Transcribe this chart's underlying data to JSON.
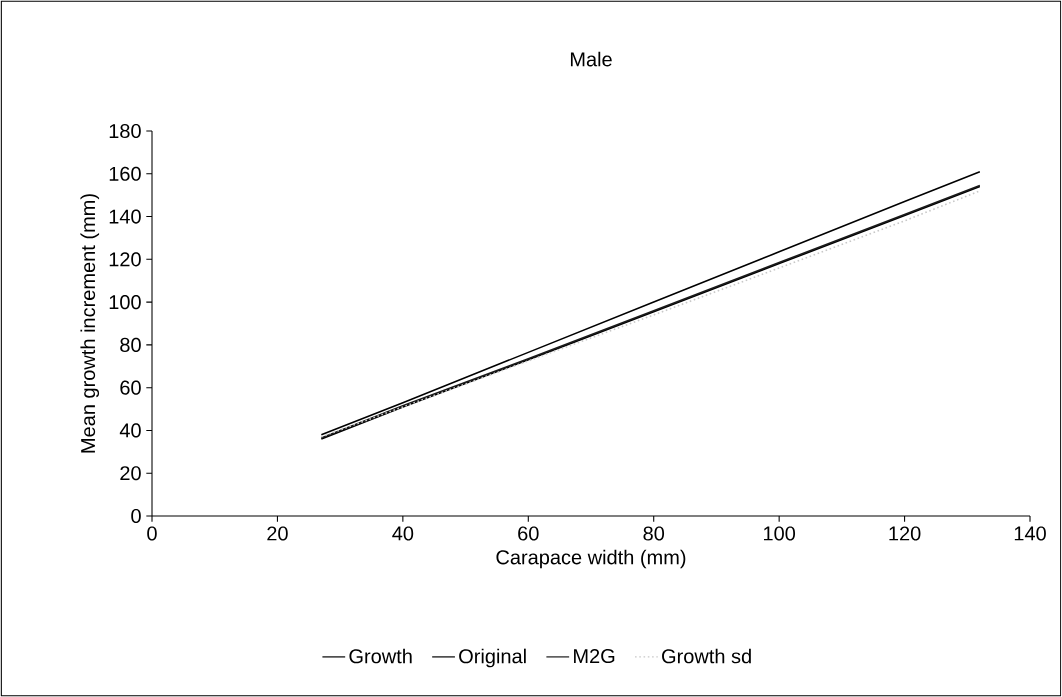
{
  "chart_data": {
    "type": "line",
    "title": "Male",
    "xlabel": "Carapace width (mm)",
    "ylabel": "Mean growth increment (mm)",
    "xlim": [
      0,
      140
    ],
    "xticks": [
      0,
      20,
      40,
      60,
      80,
      100,
      120,
      140
    ],
    "ylim": [
      0,
      180
    ],
    "yticks": [
      0,
      20,
      40,
      60,
      80,
      100,
      120,
      140,
      160,
      180
    ],
    "grid": false,
    "legend": "bottom",
    "marker": "none",
    "series": [
      {
        "name": "Growth",
        "color": "#000000",
        "x": [
          27,
          40,
          60,
          80,
          100,
          120,
          132
        ],
        "values": [
          36,
          51,
          73,
          95.5,
          118,
          140.5,
          154
        ]
      },
      {
        "name": "Original",
        "color": "#000000",
        "x": [
          27,
          40,
          60,
          80,
          100,
          120,
          132
        ],
        "values": [
          38,
          53,
          76.5,
          100,
          123.5,
          147,
          161
        ]
      },
      {
        "name": "M2G",
        "color": "#1a1a1a",
        "x": [
          27,
          40,
          60,
          80,
          100,
          120,
          132
        ],
        "values": [
          36.5,
          51.5,
          73.5,
          96,
          118.5,
          141,
          154.5
        ]
      },
      {
        "name": "Growth sd",
        "color": "#c8c8c8",
        "line_style": "dotted",
        "x": [
          27,
          40,
          60,
          80,
          100,
          120,
          132
        ],
        "values": [
          37,
          51,
          72.5,
          94,
          116,
          138,
          152
        ]
      }
    ]
  }
}
